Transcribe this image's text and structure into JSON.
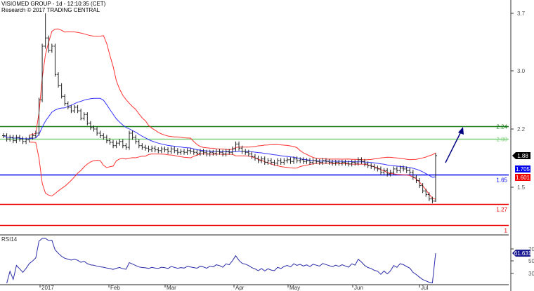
{
  "header": {
    "title": "VISIOMED GROUP - 1d - 12:10:35 (CET)",
    "subtitle": "Research © 2017 TRADING CENTRAL"
  },
  "chart_data": {
    "type": "ohlc",
    "price_axis_ticks": [
      "3.7",
      "3.0",
      "2.2",
      "1.5"
    ],
    "x_tick_labels": [
      "2017",
      "Feb",
      "Mar",
      "Apr",
      "May",
      "Jun",
      "Jul"
    ],
    "closes": [
      2.12,
      2.08,
      2.1,
      2.06,
      2.1,
      2.08,
      2.05,
      2.07,
      2.1,
      2.12,
      2.15,
      2.6,
      3.3,
      3.4,
      3.25,
      3.3,
      2.95,
      2.8,
      2.65,
      2.55,
      2.5,
      2.45,
      2.5,
      2.45,
      2.35,
      2.4,
      2.28,
      2.22,
      2.2,
      2.15,
      2.12,
      2.1,
      2.06,
      2.04,
      2.0,
      2.03,
      2.05,
      2.0,
      1.98,
      2.15,
      2.1,
      2.05,
      2.0,
      1.98,
      1.97,
      1.95,
      1.97,
      1.95,
      1.94,
      1.96,
      1.95,
      1.93,
      1.96,
      1.94,
      1.92,
      1.93,
      1.92,
      1.94,
      1.93,
      1.92,
      1.91,
      1.93,
      1.92,
      1.9,
      1.92,
      1.91,
      1.93,
      1.92,
      1.9,
      1.93,
      1.92,
      1.96,
      2.02,
      1.97,
      1.93,
      1.92,
      1.9,
      1.87,
      1.85,
      1.82,
      1.84,
      1.8,
      1.82,
      1.8,
      1.79,
      1.82,
      1.8,
      1.82,
      1.83,
      1.81,
      1.84,
      1.82,
      1.83,
      1.81,
      1.82,
      1.8,
      1.82,
      1.81,
      1.8,
      1.82,
      1.81,
      1.8,
      1.79,
      1.8,
      1.79,
      1.8,
      1.79,
      1.78,
      1.8,
      1.79,
      1.83,
      1.81,
      1.78,
      1.76,
      1.75,
      1.73,
      1.72,
      1.68,
      1.7,
      1.66,
      1.68,
      1.72,
      1.7,
      1.73,
      1.72,
      1.7,
      1.68,
      1.62,
      1.58,
      1.52,
      1.45,
      1.4,
      1.34,
      1.31,
      1.88
    ],
    "spike_high": 3.7,
    "overlays": [
      "Bollinger Bands",
      "Moving Average"
    ],
    "levels": [
      {
        "value": 2.24,
        "label": "2.24",
        "color": "#1a7a1a"
      },
      {
        "value": 2.08,
        "label": "2.08",
        "color": "#7fcf7f"
      },
      {
        "value": 1.65,
        "label": "1.65",
        "color": "#0000ee"
      },
      {
        "value": 1.27,
        "label": "1.27",
        "color": "#ee0000"
      },
      {
        "value": 1.0,
        "label": "1",
        "color": "#ee0000"
      }
    ],
    "tags": [
      {
        "label": "1.88",
        "color": "#000000"
      },
      {
        "label": "1.705",
        "color": "#0000ee"
      },
      {
        "label": "1.601",
        "color": "#ee0000"
      }
    ],
    "forecast_arrow": {
      "direction": "up",
      "target": 2.24,
      "color": "#000080"
    },
    "rsi": {
      "label": "RSI14",
      "value_tag": "61.631",
      "ticks": [
        "70",
        "50",
        "30"
      ],
      "color": "#2a2aa8"
    }
  }
}
